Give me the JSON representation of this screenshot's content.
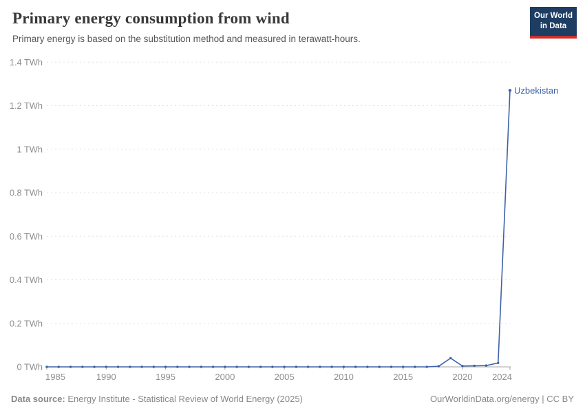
{
  "header": {
    "title": "Primary energy consumption from wind",
    "subtitle": "Primary energy is based on the substitution method and measured in terawatt-hours.",
    "logo": {
      "line1": "Our World",
      "line2": "in Data"
    }
  },
  "chart_data": {
    "type": "line",
    "title": "Primary energy consumption from wind",
    "xlabel": "",
    "ylabel": "",
    "unit": "TWh",
    "ylim": [
      0,
      1.4
    ],
    "yticks": [
      0,
      0.2,
      0.4,
      0.6,
      0.8,
      1,
      1.2,
      1.4
    ],
    "ytick_labels": [
      "0 TWh",
      "0.2 TWh",
      "0.4 TWh",
      "0.6 TWh",
      "0.8 TWh",
      "1 TWh",
      "1.2 TWh",
      "1.4 TWh"
    ],
    "xlim": [
      1985,
      2024
    ],
    "xticks": [
      1985,
      1990,
      1995,
      2000,
      2005,
      2010,
      2015,
      2020,
      2024
    ],
    "xtick_labels": [
      "1985",
      "1990",
      "1995",
      "2000",
      "2005",
      "2010",
      "2015",
      "2020",
      "2024"
    ],
    "grid": "horizontal-dashed",
    "legend_position": "end-of-line-label",
    "series": [
      {
        "name": "Uzbekistan",
        "color": "#3d62a8",
        "x": [
          1985,
          1986,
          1987,
          1988,
          1989,
          1990,
          1991,
          1992,
          1993,
          1994,
          1995,
          1996,
          1997,
          1998,
          1999,
          2000,
          2001,
          2002,
          2003,
          2004,
          2005,
          2006,
          2007,
          2008,
          2009,
          2010,
          2011,
          2012,
          2013,
          2014,
          2015,
          2016,
          2017,
          2018,
          2019,
          2020,
          2021,
          2022,
          2023,
          2024
        ],
        "values": [
          0,
          0,
          0,
          0,
          0,
          0,
          0,
          0,
          0,
          0,
          0,
          0,
          0,
          0,
          0,
          0,
          0,
          0,
          0,
          0,
          0,
          0,
          0,
          0,
          0,
          0,
          0,
          0,
          0,
          0,
          0,
          0,
          0,
          0.003,
          0.04,
          0.004,
          0.005,
          0.006,
          0.018,
          1.27
        ]
      }
    ]
  },
  "footer": {
    "datasource_label": "Data source:",
    "datasource": "Energy Institute - Statistical Review of World Energy (2025)",
    "credit": "OurWorldinData.org/energy | CC BY"
  },
  "colors": {
    "line": "#3d62a8",
    "grid": "#e0e0e0",
    "axis": "#a5a5a5",
    "tick_label": "#8e8e8e",
    "annotation": "#3d62a8",
    "logo_bg": "#1d3d63",
    "logo_accent": "#cc3029"
  }
}
